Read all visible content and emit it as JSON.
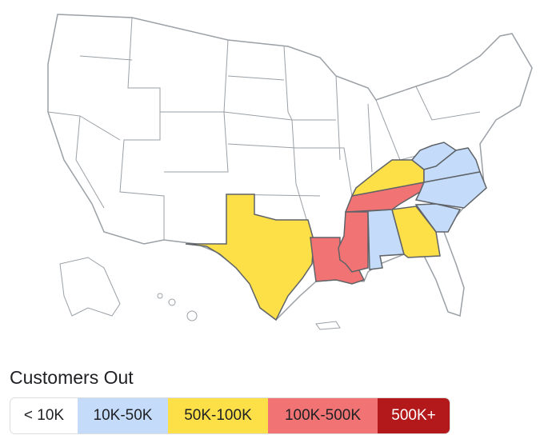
{
  "legend": {
    "title": "Customers Out",
    "items": [
      {
        "label": "< 10K",
        "color": "#ffffff"
      },
      {
        "label": "10K-50K",
        "color": "#c4dcfa"
      },
      {
        "label": "50K-100K",
        "color": "#fde047"
      },
      {
        "label": "100K-500K",
        "color": "#f27373"
      },
      {
        "label": "500K+",
        "color": "#b3191b"
      }
    ]
  },
  "states": {
    "10K-50K": [
      "Alabama",
      "Virginia",
      "West Virginia",
      "North Carolina",
      "South Carolina"
    ],
    "50K-100K": [
      "Texas",
      "Kentucky",
      "Georgia"
    ],
    "100K-500K": [
      "Louisiana",
      "Mississippi",
      "Tennessee"
    ]
  }
}
